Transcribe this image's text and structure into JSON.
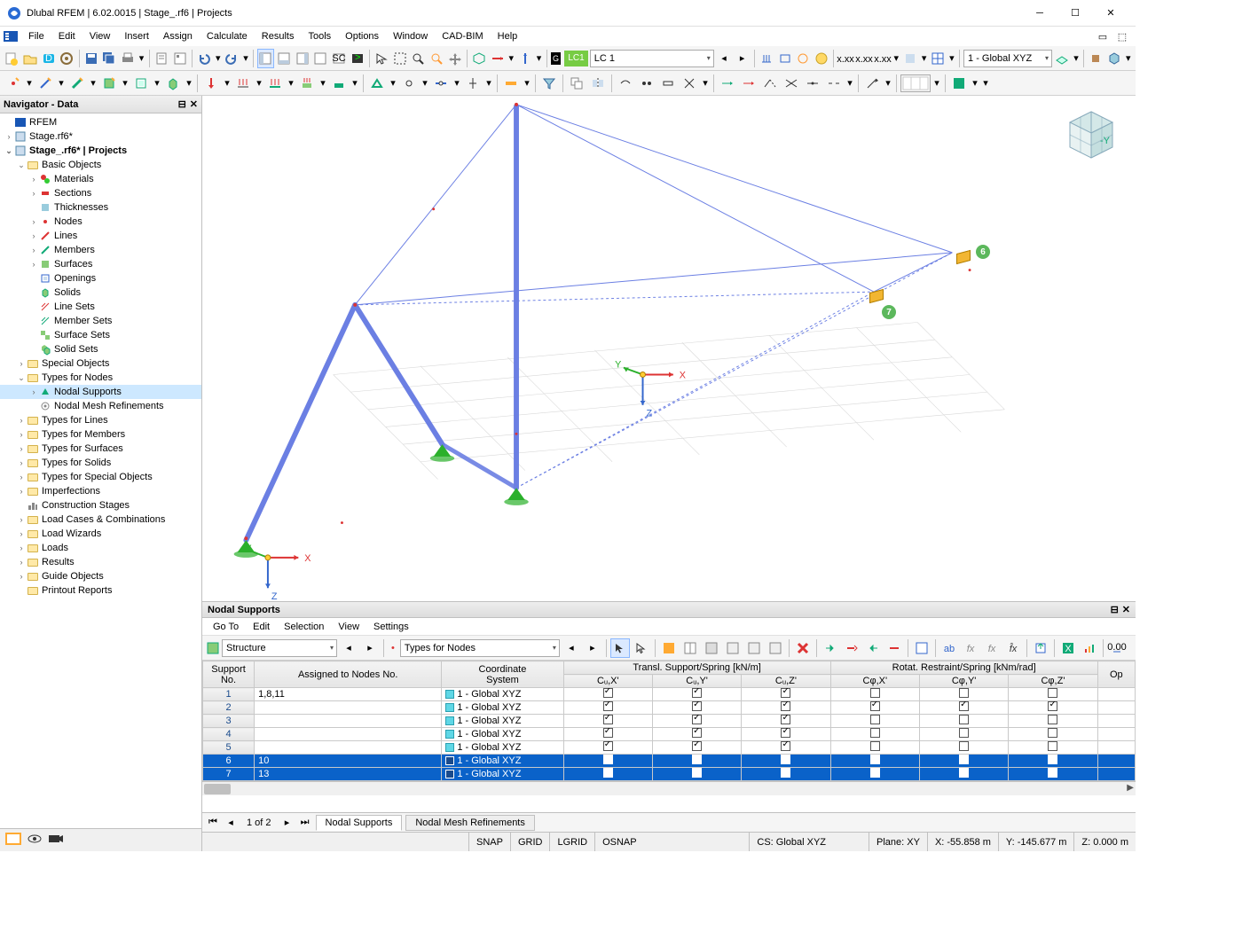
{
  "window": {
    "title": "Dlubal RFEM | 6.02.0015 | Stage_.rf6 | Projects"
  },
  "menu": [
    "File",
    "Edit",
    "View",
    "Insert",
    "Assign",
    "Calculate",
    "Results",
    "Tools",
    "Options",
    "Window",
    "CAD-BIM",
    "Help"
  ],
  "toolbar2": {
    "lc_badge": "LC1",
    "lc_combo": "LC 1",
    "cs_combo": "1 - Global XYZ"
  },
  "navigator": {
    "title": "Navigator - Data",
    "root": "RFEM",
    "files": [
      "Stage.rf6*",
      "Stage_.rf6* | Projects"
    ],
    "basic_objects": "Basic Objects",
    "basic_children": [
      "Materials",
      "Sections",
      "Thicknesses",
      "Nodes",
      "Lines",
      "Members",
      "Surfaces",
      "Openings",
      "Solids",
      "Line Sets",
      "Member Sets",
      "Surface Sets",
      "Solid Sets"
    ],
    "special_objects": "Special Objects",
    "types_for_nodes": "Types for Nodes",
    "types_nodes_children": [
      "Nodal Supports",
      "Nodal Mesh Refinements"
    ],
    "rest": [
      "Types for Lines",
      "Types for Members",
      "Types for Surfaces",
      "Types for Solids",
      "Types for Special Objects",
      "Imperfections",
      "Construction Stages",
      "Load Cases & Combinations",
      "Load Wizards",
      "Loads",
      "Results",
      "Guide Objects",
      "Printout Reports"
    ]
  },
  "viewport": {
    "axes": {
      "x": "X",
      "y": "Y",
      "z": "Z"
    },
    "badges": [
      "6",
      "7"
    ]
  },
  "bottom": {
    "title": "Nodal Supports",
    "menu": [
      "Go To",
      "Edit",
      "Selection",
      "View",
      "Settings"
    ],
    "combo1": "Structure",
    "combo2": "Types for Nodes",
    "headers_top": {
      "support_no": "Support\nNo.",
      "assigned": "Assigned to Nodes No.",
      "coord": "Coordinate\nSystem",
      "transl": "Transl. Support/Spring [kN/m]",
      "rotat": "Rotat. Restraint/Spring [kNm/rad]",
      "op": "Op"
    },
    "sub_headers": [
      "Cᵤ,X'",
      "Cᵤ,Y'",
      "Cᵤ,Z'",
      "Cφ,X'",
      "Cφ,Y'",
      "Cφ,Z'"
    ],
    "cs_value": "1 - Global XYZ",
    "rows": [
      {
        "no": "1",
        "assigned": "1,8,11",
        "t": [
          true,
          true,
          true
        ],
        "r": [
          false,
          false,
          false
        ],
        "sel": false
      },
      {
        "no": "2",
        "assigned": "",
        "t": [
          true,
          true,
          true
        ],
        "r": [
          true,
          true,
          true
        ],
        "sel": false
      },
      {
        "no": "3",
        "assigned": "",
        "t": [
          true,
          true,
          true
        ],
        "r": [
          false,
          false,
          false
        ],
        "sel": false
      },
      {
        "no": "4",
        "assigned": "",
        "t": [
          true,
          true,
          true
        ],
        "r": [
          false,
          false,
          false
        ],
        "sel": false
      },
      {
        "no": "5",
        "assigned": "",
        "t": [
          true,
          true,
          true
        ],
        "r": [
          false,
          false,
          false
        ],
        "sel": false
      },
      {
        "no": "6",
        "assigned": "10",
        "t": [
          false,
          true,
          false
        ],
        "r": [
          false,
          false,
          false
        ],
        "sel": true
      },
      {
        "no": "7",
        "assigned": "13",
        "t": [
          false,
          true,
          false
        ],
        "r": [
          false,
          false,
          false
        ],
        "sel": true
      }
    ],
    "pager": "1 of 2",
    "tabs": [
      "Nodal Supports",
      "Nodal Mesh Refinements"
    ]
  },
  "status": {
    "snap": "SNAP",
    "grid": "GRID",
    "lgrid": "LGRID",
    "osnap": "OSNAP",
    "cs": "CS: Global XYZ",
    "plane": "Plane: XY",
    "x": "X: -55.858 m",
    "y": "Y: -145.677 m",
    "z": "Z: 0.000 m"
  },
  "colors": {
    "sel": "#0a62c9",
    "member": "#6b7fe3",
    "support": "#2bb02b",
    "badge": "#5cb85c",
    "box": "#f2b632"
  }
}
